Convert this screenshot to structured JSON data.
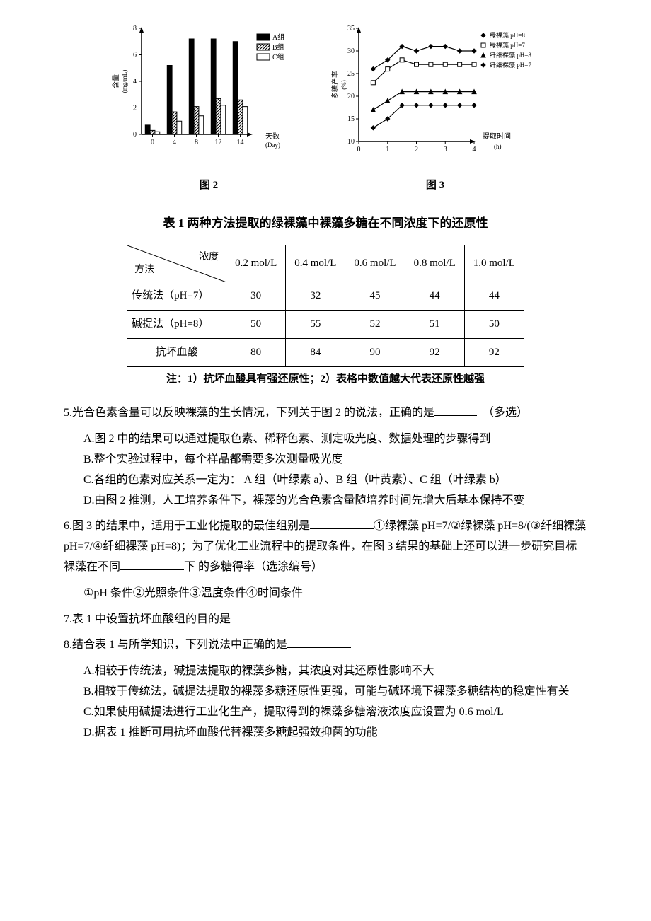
{
  "chart2": {
    "type": "bar",
    "caption": "图 2",
    "x_label": "天数\n(Day)",
    "y_label": "含量\n(mg/mL)",
    "x_ticks": [
      0,
      4,
      8,
      12,
      14
    ],
    "y_ticks": [
      0,
      2,
      4,
      6,
      8
    ],
    "y_lim": [
      0,
      8
    ],
    "legend": [
      "A组",
      "B组",
      "C组"
    ],
    "legend_patterns": [
      "solid",
      "hatch",
      "open"
    ],
    "bar_colors": [
      "#000000",
      "#000000",
      "#ffffff"
    ],
    "bar_border": "#000000",
    "bar_width": 0.22,
    "series": {
      "A": [
        0.7,
        5.2,
        7.2,
        7.2,
        7.0
      ],
      "B": [
        0.3,
        1.7,
        2.1,
        2.7,
        2.6
      ],
      "C": [
        0.2,
        1.0,
        1.4,
        2.2,
        2.1
      ]
    },
    "background_color": "#ffffff",
    "axis_color": "#000000",
    "tick_font_size": 10
  },
  "chart3": {
    "type": "line",
    "caption": "图 3",
    "x_label": "提取时间\n(h)",
    "y_label": "多糖产率\n(%)",
    "x_ticks": [
      0,
      1,
      2,
      3,
      4
    ],
    "y_ticks": [
      10,
      15,
      20,
      25,
      30,
      35
    ],
    "y_lim": [
      10,
      35
    ],
    "x_lim": [
      0,
      4
    ],
    "legend": [
      "绿裸藻 pH=8",
      "绿裸藻 pH=7",
      "纤细裸藻 pH=8",
      "纤细裸藻 pH=7"
    ],
    "markers": [
      "diamond",
      "square",
      "triangle",
      "diamond"
    ],
    "marker_colors": [
      "#000000",
      "#000000",
      "#000000",
      "#000000"
    ],
    "marker_fill": [
      "#000000",
      "#ffffff",
      "#000000",
      "#000000"
    ],
    "line_color": "#000000",
    "x_data": [
      0.5,
      1,
      1.5,
      2,
      2.5,
      3,
      3.5,
      4
    ],
    "series": {
      "green_ph8": [
        26,
        28,
        31,
        30,
        31,
        31,
        30,
        30
      ],
      "green_ph7": [
        23,
        26,
        28,
        27,
        27,
        27,
        27,
        27
      ],
      "fine_ph8": [
        17,
        19,
        21,
        21,
        21,
        21,
        21,
        21
      ],
      "fine_ph7": [
        13,
        15,
        18,
        18,
        18,
        18,
        18,
        18
      ]
    },
    "background_color": "#ffffff",
    "axis_color": "#000000",
    "tick_font_size": 10
  },
  "table1": {
    "title": "表 1 两种方法提取的绿裸藻中裸藻多糖在不同浓度下的还原性",
    "diag_top": "浓度",
    "diag_bot": "方法",
    "columns": [
      "0.2 mol/L",
      "0.4 mol/L",
      "0.6 mol/L",
      "0.8 mol/L",
      "1.0 mol/L"
    ],
    "rows": [
      {
        "label": "传统法（pH=7）",
        "values": [
          30,
          32,
          45,
          44,
          44
        ]
      },
      {
        "label": "碱提法（pH=8）",
        "values": [
          50,
          55,
          52,
          51,
          50
        ]
      },
      {
        "label": "抗坏血酸",
        "values": [
          80,
          84,
          90,
          92,
          92
        ]
      }
    ],
    "note": "注：1）抗坏血酸具有强还原性；2）表格中数值越大代表还原性越强"
  },
  "q5": {
    "stem_pre": "5.光合色素含量可以反映裸藻的生长情况，下列关于图 2 的说法，正确的是",
    "stem_post": "（多选）",
    "A": "A.图 2 中的结果可以通过提取色素、稀释色素、测定吸光度、数据处理的步骤得到",
    "B": "B.整个实验过程中，每个样品都需要多次测量吸光度",
    "C": "C.各组的色素对应关系一定为： A 组（叶绿素 a）、B 组（叶黄素）、C 组（叶绿素 b）",
    "D": "D.由图 2 推测，人工培养条件下，裸藻的光合色素含量随培养时间先增大后基本保持不变"
  },
  "q6": {
    "stem_pre": "6.图 3 的结果中，适用于工业化提取的最佳组别是",
    "stem_mid": "①绿裸藻 pH=7/②绿裸藻 pH=8/(③纤细裸藻 pH=7/④纤细裸藻 pH=8)；为了优化工业流程中的提取条件，在图 3 结果的基础上还可以进一步研究目标裸藻在不同",
    "stem_post": "下 的多糖得率（选涂编号）",
    "opts": "①pH 条件②光照条件③温度条件④时间条件"
  },
  "q7": {
    "text": "7.表 1 中设置抗坏血酸组的目的是"
  },
  "q8": {
    "stem": "8.结合表 1 与所学知识，下列说法中正确的是",
    "A": "A.相较于传统法，碱提法提取的裸藻多糖，其浓度对其还原性影响不大",
    "B": "B.相较于传统法，碱提法提取的裸藻多糖还原性更强，可能与碱环境下裸藻多糖结构的稳定性有关",
    "C": "C.如果使用碱提法进行工业化生产，提取得到的裸藻多糖溶液浓度应设置为 0.6 mol/L",
    "D": "D.据表 1 推断可用抗坏血酸代替裸藻多糖起强效抑菌的功能"
  }
}
